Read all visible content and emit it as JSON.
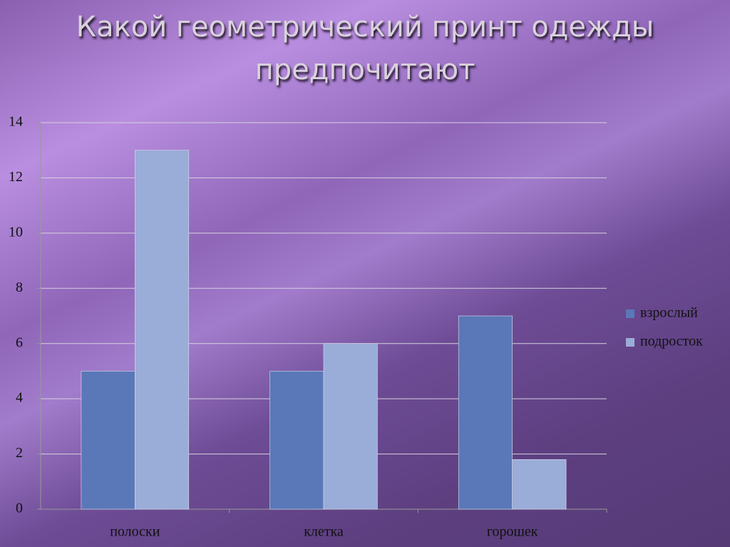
{
  "chart_data": {
    "type": "bar",
    "title": "Какой геометрический принт одежды предпочитают",
    "categories": [
      "полоски",
      "клетка",
      "горошек"
    ],
    "series": [
      {
        "name": "взрослый",
        "color": "#5a78b8",
        "values": [
          5,
          5,
          7
        ]
      },
      {
        "name": "подросток",
        "color": "#9aacd8",
        "values": [
          13,
          6,
          1.8
        ]
      }
    ],
    "ylim": [
      0,
      14
    ],
    "yticks": [
      0,
      2,
      4,
      6,
      8,
      10,
      12,
      14
    ],
    "grid": true,
    "legend": "right"
  }
}
